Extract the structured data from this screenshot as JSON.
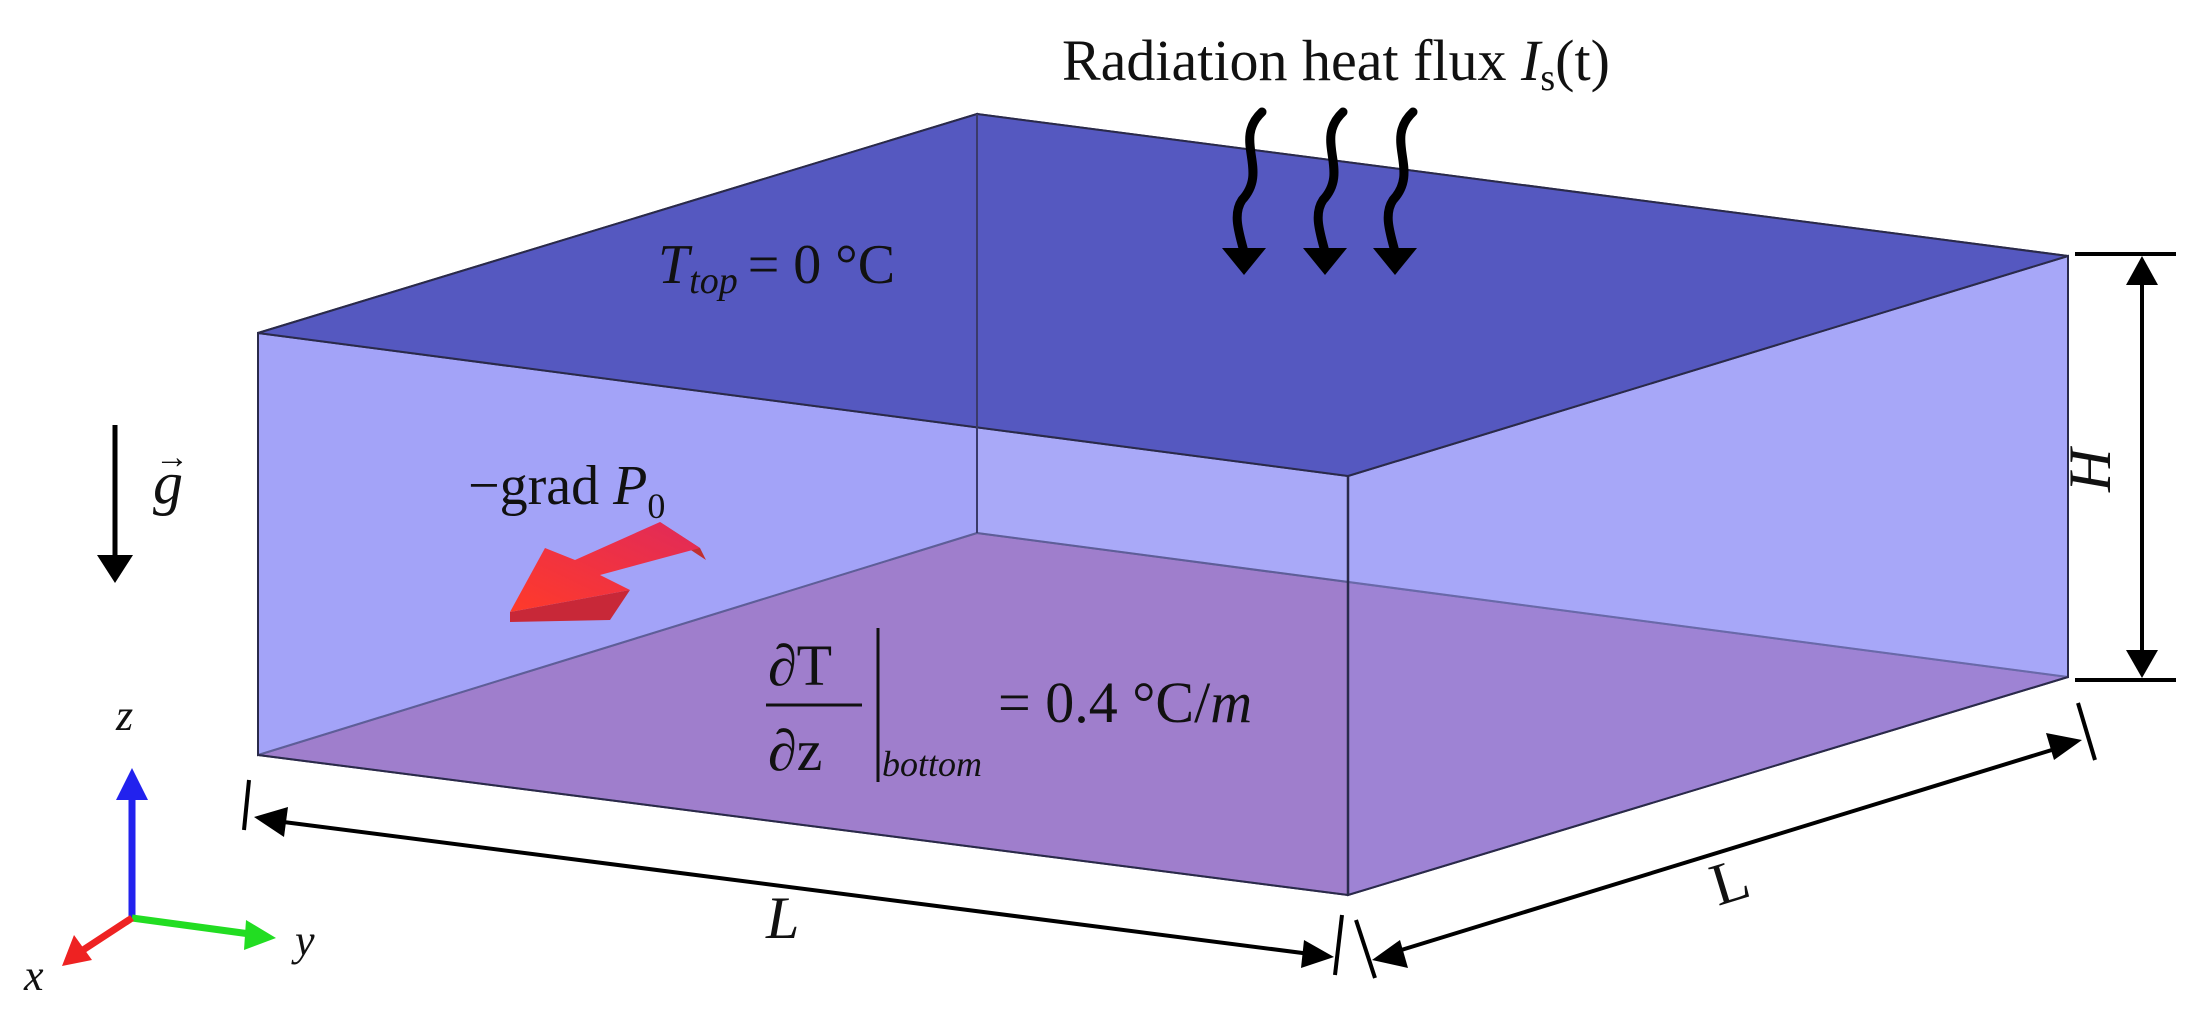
{
  "title": {
    "prefix": "Radiation heat flux ",
    "symbol": "I",
    "subscript": "s",
    "suffix": "(t)"
  },
  "top_condition": {
    "symbol": "T",
    "subscript": "top",
    "equation": "= 0 °C"
  },
  "bottom_condition": {
    "numerator": "∂T",
    "denominator": "∂z",
    "subscript": "bottom",
    "equation": "= 0.4 °C/",
    "unit": "m"
  },
  "pressure_gradient": {
    "prefix": "−grad ",
    "symbol": "P",
    "subscript": "0"
  },
  "gravity": {
    "symbol": "g",
    "vector_mark": "→"
  },
  "dimensions": {
    "height": "H",
    "length_front": "L",
    "length_side": "L"
  },
  "axes": {
    "x": "x",
    "y": "y",
    "z": "z"
  },
  "colors": {
    "top_face": "#5558c0",
    "side_faces": "#9999f6",
    "bottom_face": "#a064a8",
    "pressure_arrow": "#f0463c",
    "axis_x": "#ee2222",
    "axis_y": "#22dd22",
    "axis_z": "#2222ee"
  }
}
